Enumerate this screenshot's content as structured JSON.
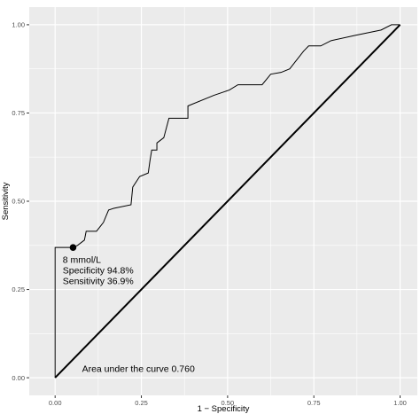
{
  "chart_data": {
    "type": "line",
    "xlabel": "1 − Specificity",
    "ylabel": "Sensitivity",
    "xlim": [
      -0.075,
      1.05
    ],
    "ylim": [
      -0.05,
      1.05
    ],
    "x_ticks": [
      0.0,
      0.25,
      0.5,
      0.75,
      1.0
    ],
    "y_ticks": [
      0.0,
      0.25,
      0.5,
      0.75,
      1.0
    ],
    "x_tick_labels": [
      "0.00",
      "0.25",
      "0.50",
      "0.75",
      "1.00"
    ],
    "y_tick_labels": [
      "0.00",
      "0.25",
      "0.50",
      "0.75",
      "1.00"
    ],
    "grid": true,
    "background": "#ebebeb",
    "grid_color": "#ffffff",
    "series": [
      {
        "type": "step-line",
        "color": "#000000",
        "points": [
          [
            0.0,
            0.0
          ],
          [
            0.0,
            0.369
          ],
          [
            0.052,
            0.369
          ],
          [
            0.065,
            0.375
          ],
          [
            0.085,
            0.39
          ],
          [
            0.09,
            0.415
          ],
          [
            0.12,
            0.415
          ],
          [
            0.14,
            0.44
          ],
          [
            0.155,
            0.475
          ],
          [
            0.17,
            0.48
          ],
          [
            0.22,
            0.49
          ],
          [
            0.225,
            0.54
          ],
          [
            0.245,
            0.57
          ],
          [
            0.27,
            0.58
          ],
          [
            0.275,
            0.615
          ],
          [
            0.28,
            0.645
          ],
          [
            0.295,
            0.645
          ],
          [
            0.295,
            0.665
          ],
          [
            0.315,
            0.68
          ],
          [
            0.33,
            0.735
          ],
          [
            0.385,
            0.735
          ],
          [
            0.385,
            0.77
          ],
          [
            0.46,
            0.8
          ],
          [
            0.505,
            0.815
          ],
          [
            0.53,
            0.83
          ],
          [
            0.6,
            0.83
          ],
          [
            0.625,
            0.86
          ],
          [
            0.655,
            0.865
          ],
          [
            0.68,
            0.875
          ],
          [
            0.72,
            0.925
          ],
          [
            0.735,
            0.94
          ],
          [
            0.77,
            0.94
          ],
          [
            0.8,
            0.955
          ],
          [
            0.87,
            0.97
          ],
          [
            0.945,
            0.985
          ],
          [
            0.975,
            1.0
          ],
          [
            1.0,
            1.0
          ]
        ]
      },
      {
        "type": "reference-line",
        "color": "#000000",
        "points": [
          [
            0.0,
            0.0
          ],
          [
            1.0,
            1.0
          ]
        ]
      }
    ],
    "marker": {
      "x": 0.052,
      "y": 0.369,
      "color": "#000000"
    },
    "annotations": {
      "cutoff": "8 mmol/L",
      "specificity": "Specificity 94.8%",
      "sensitivity": "Sensitivity 36.9%",
      "auc": "Area under the curve 0.760"
    }
  }
}
